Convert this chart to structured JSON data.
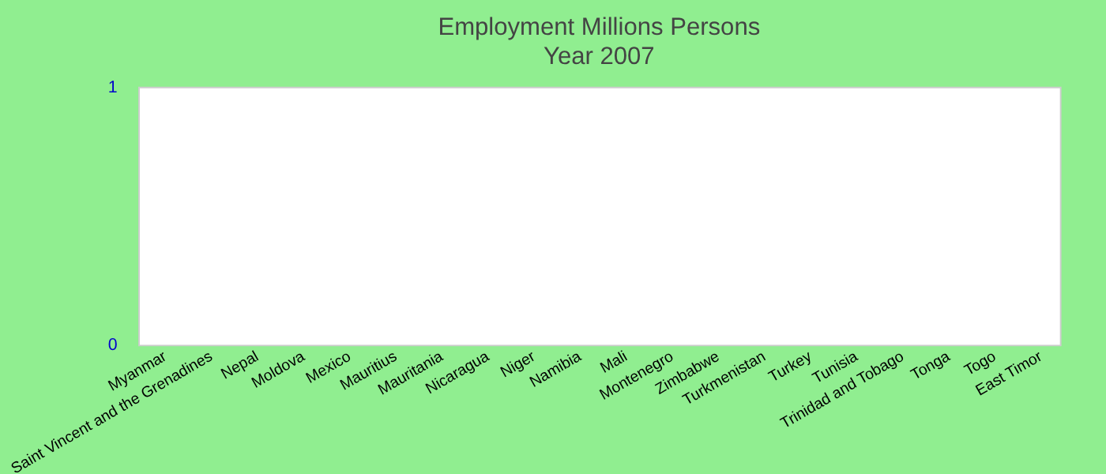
{
  "chart_data": {
    "type": "bar",
    "title": "Employment Millions Persons",
    "subtitle": "Year 2007",
    "categories": [
      "Myanmar",
      "Saint Vincent and the Grenadines",
      "Nepal",
      "Moldova",
      "Mexico",
      "Mauritius",
      "Mauritania",
      "Nicaragua",
      "Niger",
      "Namibia",
      "Mali",
      "Montenegro",
      "Zimbabwe",
      "Turkmenistan",
      "Turkey",
      "Tunisia",
      "Trinidad and Tobago",
      "Tonga",
      "Togo",
      "East Timor"
    ],
    "values": [
      0,
      0,
      0,
      0,
      0,
      0,
      0,
      0,
      0,
      0,
      0,
      0,
      0,
      0,
      0,
      0,
      0,
      0,
      0,
      0
    ],
    "ylim": [
      0,
      1
    ],
    "yticks": [
      0,
      1
    ],
    "grid": false
  }
}
